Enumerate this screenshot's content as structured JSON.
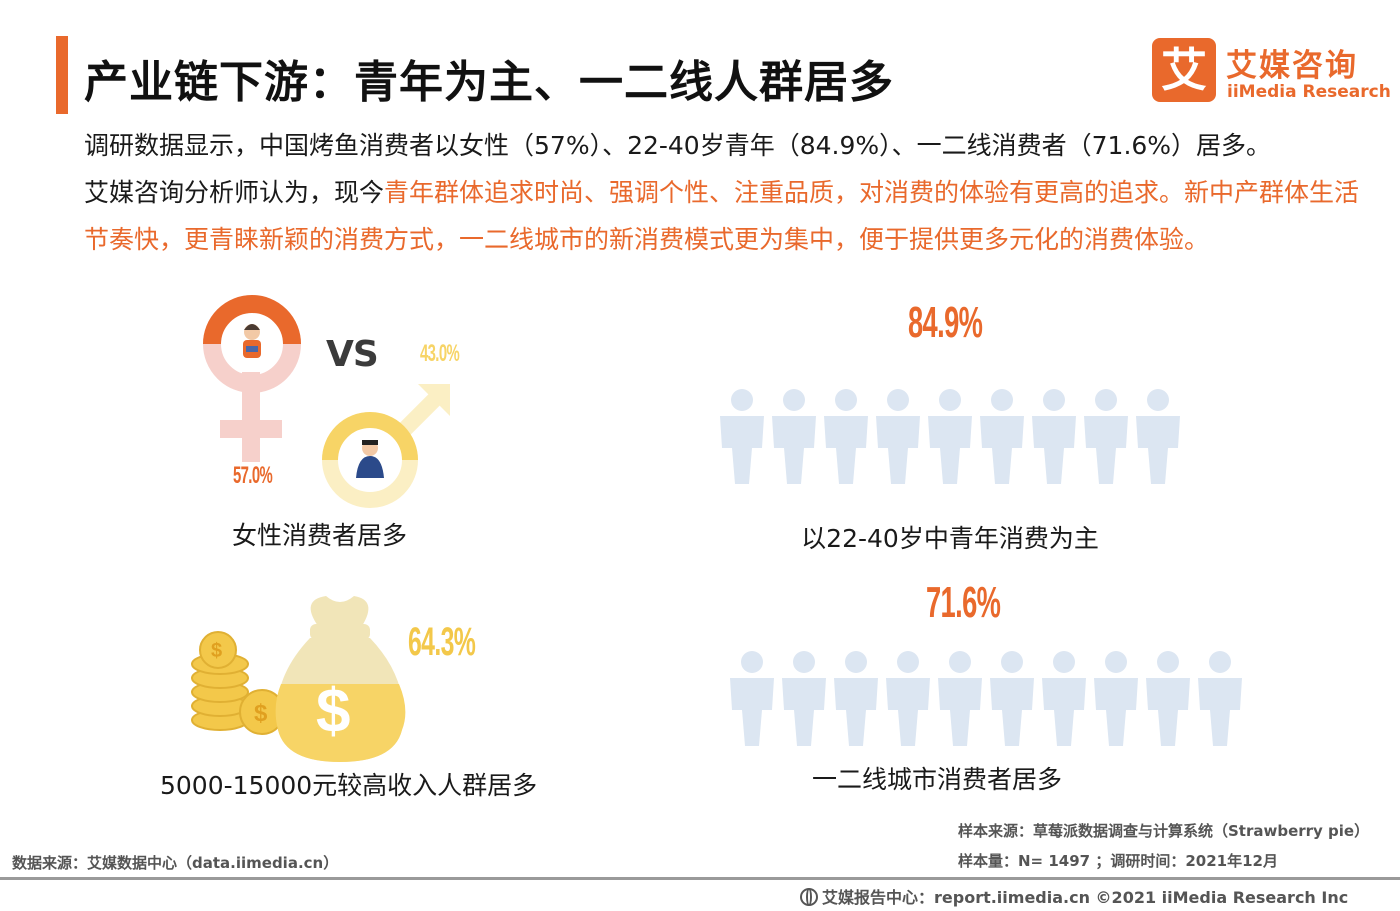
{
  "title": "产业链下游：青年为主、一二线人群居多",
  "logo": {
    "icon_char": "艾",
    "cn": "艾媒咨询",
    "en": "iiMedia Research",
    "color": "#e9692c"
  },
  "intro": {
    "line1": "调研数据显示，中国烤鱼消费者以女性（57%）、22-40岁青年（84.9%）、一二线消费者（71.6%）居多。",
    "line2_plain": "艾媒咨询分析师认为，现今",
    "line2_highlight": "青年群体追求时尚、强调个性、注重品质，对消费的体验有更高的追求。新中产群体生活节奏快，更青睐新颖的消费方式，一二线城市的新消费模式更为集中，便于提供更多元化的消费体验。"
  },
  "gender": {
    "vs": "VS",
    "female_pct": "57.0%",
    "male_pct": "43.0%",
    "label": "女性消费者居多"
  },
  "income": {
    "pct": "64.3%",
    "label": "5000-15000元较高收入人群居多"
  },
  "youth": {
    "pct": "84.9%",
    "label": "以22-40岁中青年消费为主"
  },
  "city": {
    "pct": "71.6%",
    "label": "一二线城市消费者居多"
  },
  "chart_data": [
    {
      "type": "pictograph",
      "name": "gender",
      "values": {
        "female": 57.0,
        "male": 43.0
      }
    },
    {
      "type": "pictograph",
      "name": "income",
      "value": 64.3
    },
    {
      "type": "pictograph",
      "name": "youth",
      "value": 84.9,
      "icons": 9
    },
    {
      "type": "pictograph",
      "name": "city",
      "value": 71.6,
      "icons": 10
    }
  ],
  "colors": {
    "accent": "#e9692c",
    "light_blue": "#dce6f2",
    "pink": "#f6d0cb",
    "yellow": "#f7e27a"
  },
  "source_left": "数据来源：艾媒数据中心（data.iimedia.cn）",
  "sample_source": "样本来源：草莓派数据调查与计算系统（Strawberry  pie）",
  "sample_size": "样本量：N= 1497 ；调研时间：2021年12月",
  "footer": "艾媒报告中心：report.iimedia.cn    ©2021  iiMedia Research  Inc"
}
